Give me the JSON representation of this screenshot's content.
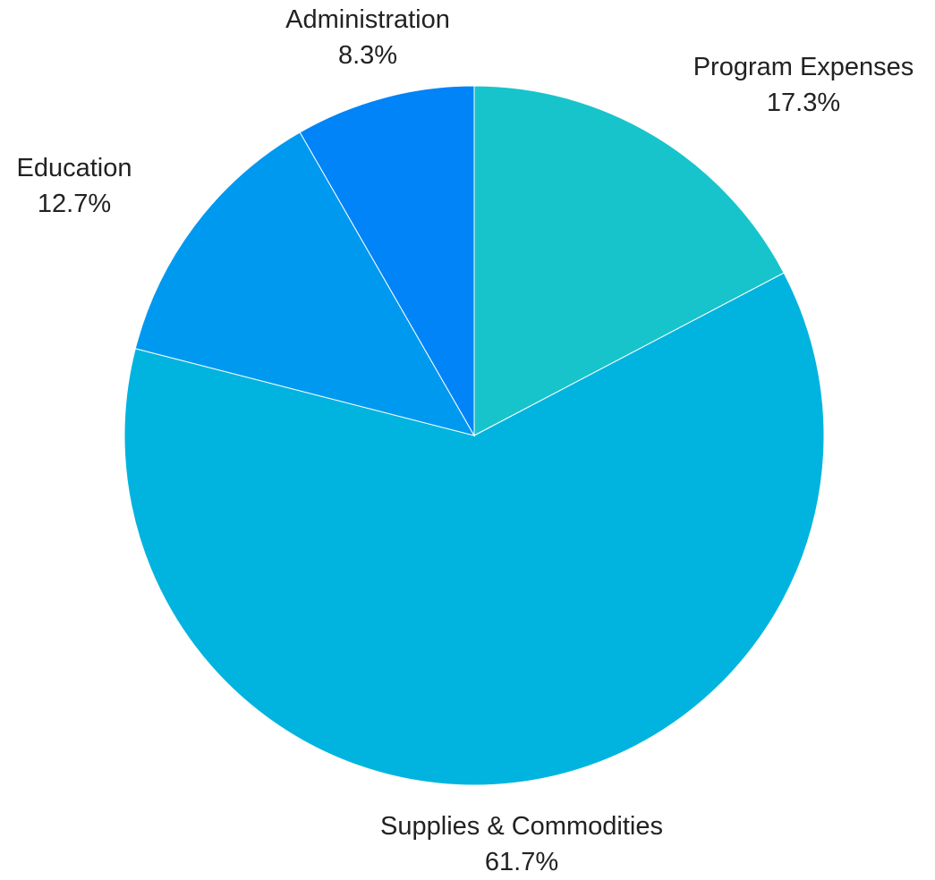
{
  "chart_data": {
    "type": "pie",
    "title": "",
    "start": "top",
    "direction": "clockwise",
    "slices": [
      {
        "label": "Program Expenses",
        "value": 17.3,
        "display": "17.3%",
        "color": "#17C4CB"
      },
      {
        "label": "Supplies & Commodities",
        "value": 61.7,
        "display": "61.7%",
        "color": "#00B4DF"
      },
      {
        "label": "Education",
        "value": 12.7,
        "display": "12.7%",
        "color": "#0099F0"
      },
      {
        "label": "Administration",
        "value": 8.3,
        "display": "8.3%",
        "color": "#0084F7"
      }
    ]
  }
}
